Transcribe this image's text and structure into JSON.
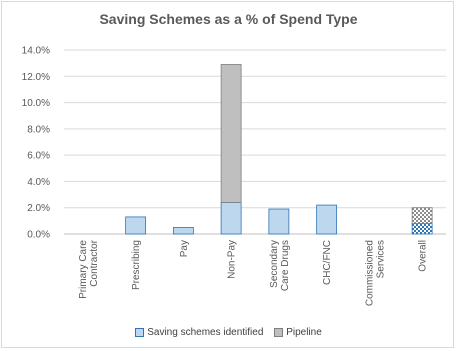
{
  "chart_data": {
    "type": "bar",
    "stacked": true,
    "title": "Saving Schemes as a % of Spend Type",
    "categories": [
      "Primary Care Contractor",
      "Prescribing",
      "Pay",
      "Non-Pay",
      "Secondary Care Drugs",
      "CHC/FNC",
      "Commissioned Services",
      "Overall"
    ],
    "category_lines": [
      [
        "Primary Care",
        "Contractor"
      ],
      [
        "Prescribing"
      ],
      [
        "Pay"
      ],
      [
        "Non-Pay"
      ],
      [
        "Secondary",
        "Care Drugs"
      ],
      [
        "CHC/FNC"
      ],
      [
        "Commissioned",
        "Services"
      ],
      [
        "Overall"
      ]
    ],
    "series": [
      {
        "name": "Saving schemes identified",
        "values": [
          0.0,
          1.3,
          0.5,
          2.4,
          1.9,
          2.2,
          0.0,
          0.8
        ],
        "color": "#bdd7ee",
        "stroke": "#2e75b6"
      },
      {
        "name": "Pipeline",
        "values": [
          0.0,
          0.0,
          0.0,
          10.5,
          0.0,
          0.0,
          0.0,
          1.2
        ],
        "color": "#bfbfbf",
        "stroke": "#7f7f7f"
      }
    ],
    "ylim": [
      0,
      14
    ],
    "yticks": [
      0,
      2,
      4,
      6,
      8,
      10,
      12,
      14
    ],
    "ytick_labels": [
      "0.0%",
      "2.0%",
      "4.0%",
      "6.0%",
      "8.0%",
      "10.0%",
      "12.0%",
      "14.0%"
    ],
    "grid": true,
    "legend_position": "bottom"
  }
}
